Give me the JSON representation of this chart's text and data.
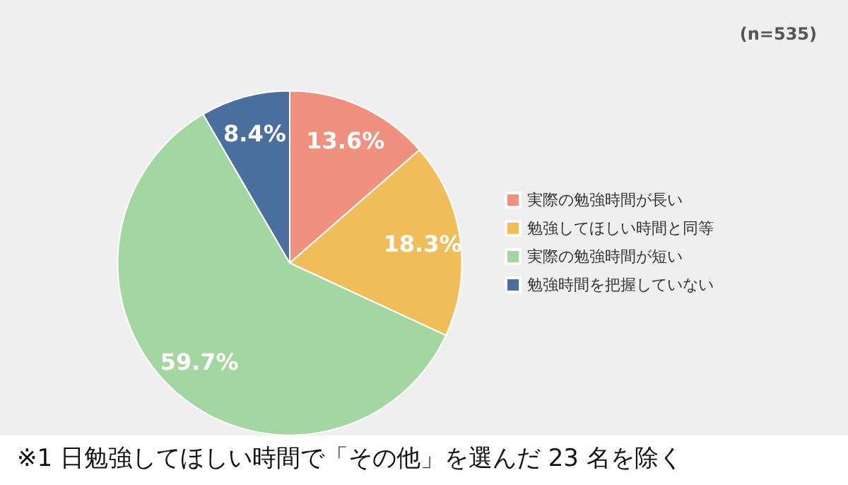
{
  "chart_data": {
    "type": "pie",
    "categories": [
      "実際の勉強時間が長い",
      "勉強してほしい時間と同等",
      "実際の勉強時間が短い",
      "勉強時間を把握していない"
    ],
    "values": [
      13.6,
      18.3,
      59.7,
      8.4
    ],
    "colors": [
      "#f0907f",
      "#f0bd5a",
      "#a3d6a0",
      "#4a6f9e"
    ],
    "value_labels": [
      "13.6%",
      "18.3%",
      "59.7%",
      "8.4%"
    ],
    "legend": "right",
    "annotations": [
      "(n=535)",
      "※1 日勉強してほしい時間で「その他」を選んだ 23 名を除く"
    ]
  }
}
